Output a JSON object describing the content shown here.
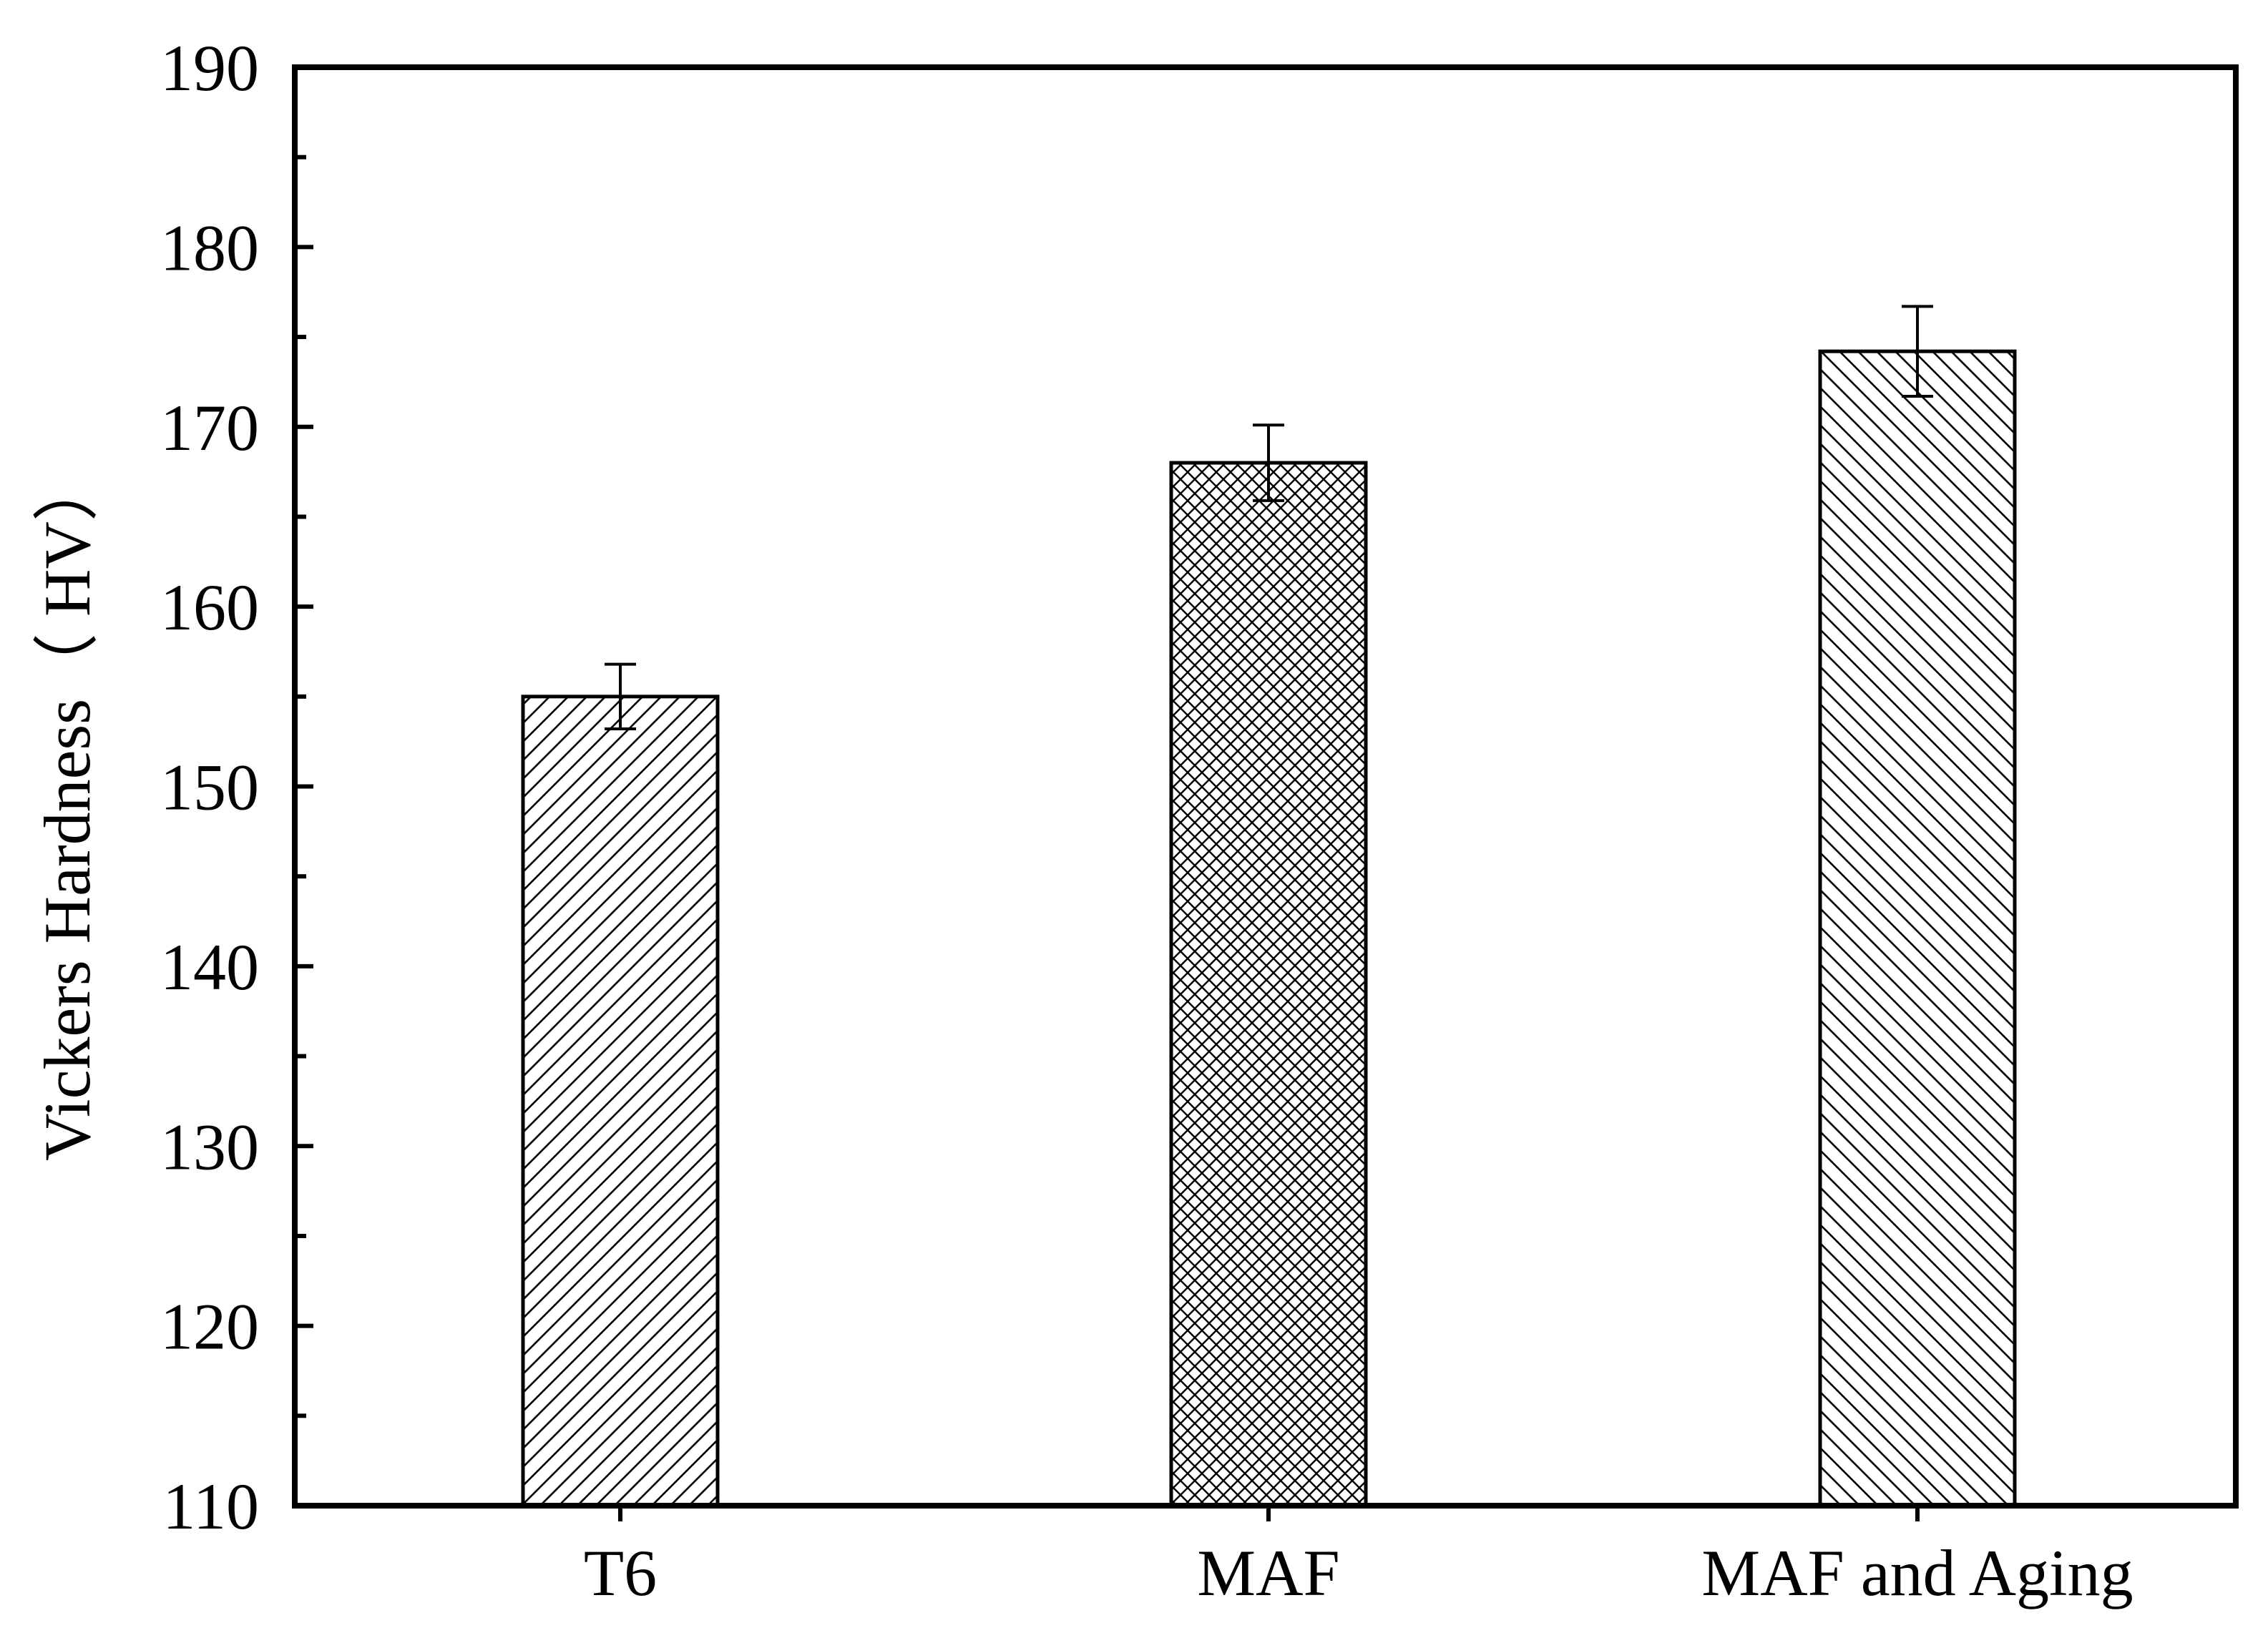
{
  "chart_data": {
    "type": "bar",
    "categories": [
      "T6",
      "MAF",
      "MAF and Aging"
    ],
    "values": [
      155,
      168,
      174.2
    ],
    "errors": [
      1.8,
      2.1,
      2.5
    ],
    "patterns": [
      "diag-up",
      "crosshatch",
      "diag-down"
    ],
    "xlabel": "",
    "ylabel": "Vickers Hardness（ HV）",
    "ylim": [
      110,
      190
    ],
    "yticks": [
      110,
      120,
      130,
      140,
      150,
      160,
      170,
      180,
      190
    ],
    "grid": false,
    "colors": {
      "bar_fill": "#ffffff",
      "stroke": "#000000"
    }
  }
}
